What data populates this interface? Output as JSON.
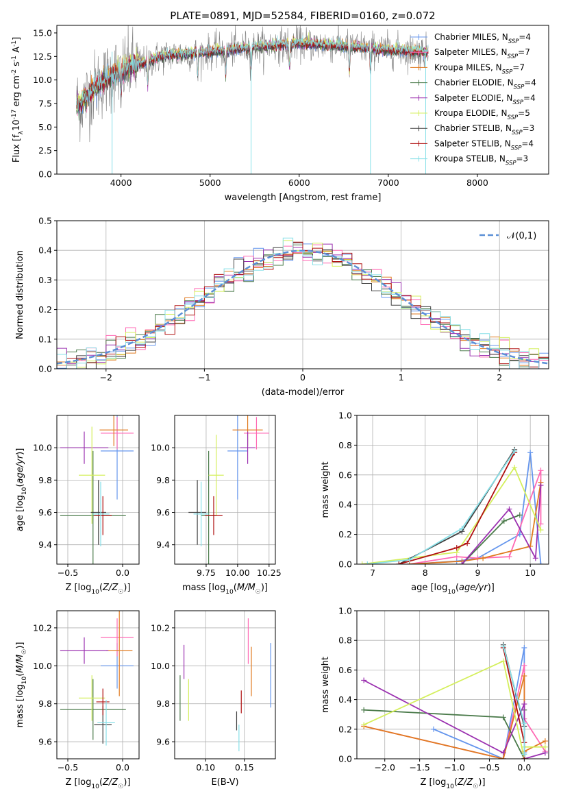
{
  "chart_data": [
    {
      "id": "spectrum",
      "type": "line",
      "title": "PLATE=0891, MJD=52584, FIBERID=0160, z=0.072",
      "xlabel": "wavelength [Angstrom, rest frame]",
      "ylabel": "Flux [f$_\\lambda$10$^{-17}$ erg cm$^{-2}$ s$^{-1}$ A$^{-1}$]",
      "xlim": [
        3280,
        8800
      ],
      "ylim": [
        0,
        15.8
      ],
      "xticks": [
        4000,
        5000,
        6000,
        7000,
        8000
      ],
      "yticks": [
        0.0,
        2.5,
        5.0,
        7.5,
        10.0,
        12.5,
        15.0
      ],
      "grid": false,
      "legend_position": "top-right",
      "data_trace": {
        "color": "#808080",
        "x_range": [
          3500,
          7450
        ]
      },
      "series": [
        {
          "name": "Chabrier MILES",
          "nssp": "4",
          "color": "#6495ed"
        },
        {
          "name": "Salpeter MILES",
          "nssp": "7",
          "color": "#ff69b4"
        },
        {
          "name": "Kroupa MILES",
          "nssp": "7",
          "color": "#e07a1f"
        },
        {
          "name": "Chabrier ELODIE",
          "nssp": "4",
          "color": "#4a7a4a"
        },
        {
          "name": "Salpeter ELODIE",
          "nssp": "4",
          "color": "#9b30b0"
        },
        {
          "name": "Kroupa ELODIE",
          "nssp": "5",
          "color": "#d4ef5c"
        },
        {
          "name": "Chabrier STELIB",
          "nssp": "3",
          "color": "#404040"
        },
        {
          "name": "Salpeter STELIB",
          "nssp": "4",
          "color": "#b01010"
        },
        {
          "name": "Kroupa STELIB",
          "nssp": "3",
          "color": "#87e0e8"
        }
      ],
      "flux_envelope": {
        "x": [
          3550,
          3700,
          3900,
          4000,
          4200,
          4500,
          5000,
          5500,
          6000,
          6500,
          7000,
          7400
        ],
        "y": [
          7.5,
          9.2,
          10.5,
          11.0,
          11.7,
          12.6,
          13.0,
          13.5,
          13.9,
          13.6,
          13.2,
          13.0
        ]
      }
    },
    {
      "id": "residuals",
      "type": "histogram",
      "xlabel": "(data-model)/error",
      "ylabel": "Normed distribution",
      "xlim": [
        -2.5,
        2.5
      ],
      "ylim": [
        0,
        0.5
      ],
      "xticks": [
        -2,
        -1,
        0,
        1,
        2
      ],
      "yticks": [
        0.0,
        0.1,
        0.2,
        0.3,
        0.4,
        0.5
      ],
      "grid": true,
      "legend": "$\\mathcal{N}(0,1)$",
      "legend_position": "top-right",
      "bin_width": 0.1,
      "reference_curve": {
        "name": "N(0,1)",
        "color": "#5b8fd6",
        "style": "dashed"
      }
    },
    {
      "id": "age-vs-Z",
      "type": "errorbar",
      "xlabel": "Z [log$_{10}$($Z/Z_\\odot$)]",
      "ylabel": "age  [log$_{10}$($age/yr$)]",
      "xlim": [
        -0.6,
        0.15
      ],
      "ylim": [
        9.28,
        10.2
      ],
      "xticks": [
        -0.5,
        0.0
      ],
      "yticks": [
        9.4,
        9.6,
        9.8,
        10.0
      ],
      "grid": true,
      "points": [
        {
          "model": "Chabrier MILES",
          "x": -0.05,
          "y": 9.98,
          "xerr": 0.15,
          "yerr": 0.3
        },
        {
          "model": "Salpeter MILES",
          "x": -0.05,
          "y": 10.09,
          "xerr": 0.15,
          "yerr": 0.1
        },
        {
          "model": "Kroupa MILES",
          "x": -0.08,
          "y": 10.11,
          "xerr": 0.13,
          "yerr": 0.1
        },
        {
          "model": "Chabrier ELODIE",
          "x": -0.27,
          "y": 9.58,
          "xerr": 0.3,
          "yerr": 0.4
        },
        {
          "model": "Salpeter ELODIE",
          "x": -0.35,
          "y": 10.0,
          "xerr": 0.22,
          "yerr": 0.1
        },
        {
          "model": "Kroupa ELODIE",
          "x": -0.28,
          "y": 9.83,
          "xerr": 0.12,
          "yerr": 0.3
        },
        {
          "model": "Chabrier STELIB",
          "x": -0.22,
          "y": 9.6,
          "xerr": 0.07,
          "yerr": 0.2
        },
        {
          "model": "Salpeter STELIB",
          "x": -0.18,
          "y": 9.58,
          "xerr": 0.08,
          "yerr": 0.12
        },
        {
          "model": "Kroupa STELIB",
          "x": -0.2,
          "y": 9.59,
          "xerr": 0.08,
          "yerr": 0.2
        }
      ]
    },
    {
      "id": "age-vs-mass",
      "type": "errorbar",
      "xlabel": "mass [log$_{10}$($M/M_\\odot$)]",
      "ylabel": "",
      "xlim": [
        9.5,
        10.3
      ],
      "ylim": [
        9.28,
        10.2
      ],
      "xticks": [
        9.75,
        10.0,
        10.25
      ],
      "yticks": [
        9.4,
        9.6,
        9.8,
        10.0
      ],
      "grid": true,
      "points": [
        {
          "model": "Chabrier MILES",
          "x": 10.0,
          "y": 9.98,
          "xerr": 0.08,
          "yerr": 0.3
        },
        {
          "model": "Salpeter MILES",
          "x": 10.15,
          "y": 10.09,
          "xerr": 0.1,
          "yerr": 0.1
        },
        {
          "model": "Kroupa MILES",
          "x": 10.08,
          "y": 10.11,
          "xerr": 0.12,
          "yerr": 0.1
        },
        {
          "model": "Chabrier ELODIE",
          "x": 9.77,
          "y": 9.58,
          "xerr": 0.06,
          "yerr": 0.4
        },
        {
          "model": "Salpeter ELODIE",
          "x": 10.08,
          "y": 10.0,
          "xerr": 0.06,
          "yerr": 0.1
        },
        {
          "model": "Kroupa ELODIE",
          "x": 9.83,
          "y": 9.83,
          "xerr": 0.06,
          "yerr": 0.25
        },
        {
          "model": "Chabrier STELIB",
          "x": 9.68,
          "y": 9.6,
          "xerr": 0.07,
          "yerr": 0.2
        },
        {
          "model": "Salpeter STELIB",
          "x": 9.81,
          "y": 9.58,
          "xerr": 0.07,
          "yerr": 0.12
        },
        {
          "model": "Kroupa STELIB",
          "x": 9.71,
          "y": 9.59,
          "xerr": 0.06,
          "yerr": 0.2
        }
      ]
    },
    {
      "id": "weight-vs-age",
      "type": "line",
      "xlabel": "age  [log$_{10}$($age/yr$)]",
      "ylabel": "mass weight",
      "xlim": [
        6.7,
        10.35
      ],
      "ylim": [
        0,
        1.0
      ],
      "xticks": [
        7,
        8,
        9,
        10
      ],
      "yticks": [
        0.0,
        0.2,
        0.4,
        0.6,
        0.8,
        1.0
      ],
      "grid": true,
      "lines": [
        {
          "model": "Chabrier MILES",
          "x": [
            7.7,
            8.6,
            9.0,
            9.8,
            10.0,
            10.2
          ],
          "y": [
            0.0,
            0.02,
            0.04,
            0.2,
            0.75,
            0.0
          ]
        },
        {
          "model": "Salpeter MILES",
          "x": [
            7.7,
            8.6,
            9.0,
            9.6,
            10.2,
            10.2
          ],
          "y": [
            0.0,
            0.05,
            0.04,
            0.05,
            0.63,
            0.27
          ]
        },
        {
          "model": "Kroupa MILES",
          "x": [
            7.7,
            8.7,
            9.1,
            10.0,
            10.2
          ],
          "y": [
            0.0,
            0.02,
            0.04,
            0.12,
            0.55
          ]
        },
        {
          "model": "Chabrier ELODIE",
          "x": [
            8.7,
            9.5,
            9.8
          ],
          "y": [
            0.0,
            0.29,
            0.33
          ]
        },
        {
          "model": "Salpeter ELODIE",
          "x": [
            8.7,
            9.6,
            10.1,
            10.2
          ],
          "y": [
            0.0,
            0.37,
            0.04,
            0.53
          ]
        },
        {
          "model": "Kroupa ELODIE",
          "x": [
            6.8,
            8.6,
            9.7,
            10.2
          ],
          "y": [
            0.0,
            0.08,
            0.65,
            0.23
          ]
        },
        {
          "model": "Chabrier STELIB",
          "x": [
            7.5,
            8.7,
            9.7
          ],
          "y": [
            0.0,
            0.22,
            0.77
          ]
        },
        {
          "model": "Salpeter STELIB",
          "x": [
            7.5,
            8.6,
            8.8,
            9.7
          ],
          "y": [
            0.0,
            0.11,
            0.14,
            0.75
          ]
        },
        {
          "model": "Kroupa STELIB",
          "x": [
            6.9,
            7.7,
            8.7,
            9.7
          ],
          "y": [
            0.0,
            0.03,
            0.24,
            0.76
          ]
        }
      ]
    },
    {
      "id": "mass-vs-Z",
      "type": "errorbar",
      "xlabel": "Z [log$_{10}$($Z/Z_\\odot$)]",
      "ylabel": "mass [log$_{10}$($M/M_\\odot$)]",
      "xlim": [
        -0.6,
        0.15
      ],
      "ylim": [
        9.51,
        10.29
      ],
      "xticks": [
        -0.5,
        0.0
      ],
      "yticks": [
        9.6,
        9.8,
        10.0,
        10.2
      ],
      "grid": true,
      "points": [
        {
          "model": "Chabrier MILES",
          "x": -0.05,
          "y": 10.0,
          "xerr": 0.15,
          "yerr": 0.12
        },
        {
          "model": "Salpeter MILES",
          "x": -0.05,
          "y": 10.15,
          "xerr": 0.15,
          "yerr": 0.1
        },
        {
          "model": "Kroupa MILES",
          "x": -0.03,
          "y": 10.08,
          "xerr": 0.12,
          "yerr": 0.24
        },
        {
          "model": "Chabrier ELODIE",
          "x": -0.27,
          "y": 9.77,
          "xerr": 0.3,
          "yerr": 0.16
        },
        {
          "model": "Salpeter ELODIE",
          "x": -0.35,
          "y": 10.08,
          "xerr": 0.22,
          "yerr": 0.07
        },
        {
          "model": "Kroupa ELODIE",
          "x": -0.28,
          "y": 9.83,
          "xerr": 0.12,
          "yerr": 0.12
        },
        {
          "model": "Chabrier STELIB",
          "x": -0.18,
          "y": 9.69,
          "xerr": 0.08,
          "yerr": 0.1
        },
        {
          "model": "Salpeter STELIB",
          "x": -0.18,
          "y": 9.81,
          "xerr": 0.06,
          "yerr": 0.07
        },
        {
          "model": "Kroupa STELIB",
          "x": -0.15,
          "y": 9.7,
          "xerr": 0.08,
          "yerr": 0.12
        }
      ]
    },
    {
      "id": "mass-vs-ebv",
      "type": "errorbar",
      "xlabel": "E(B-V)",
      "ylabel": "",
      "xlim": [
        0.06,
        0.19
      ],
      "ylim": [
        9.51,
        10.29
      ],
      "xticks": [
        0.1,
        0.15
      ],
      "yticks": [
        9.6,
        9.8,
        10.0,
        10.2
      ],
      "grid": true,
      "points": [
        {
          "model": "Chabrier MILES",
          "x": 0.184,
          "y": 9.95,
          "yerr": 0.17
        },
        {
          "model": "Salpeter MILES",
          "x": 0.155,
          "y": 10.13,
          "yerr": 0.12
        },
        {
          "model": "Kroupa MILES",
          "x": 0.159,
          "y": 9.97,
          "yerr": 0.13
        },
        {
          "model": "Chabrier ELODIE",
          "x": 0.067,
          "y": 9.83,
          "yerr": 0.12
        },
        {
          "model": "Salpeter ELODIE",
          "x": 0.072,
          "y": 10.02,
          "yerr": 0.09
        },
        {
          "model": "Kroupa ELODIE",
          "x": 0.078,
          "y": 9.82,
          "yerr": 0.11
        },
        {
          "model": "Chabrier STELIB",
          "x": 0.14,
          "y": 9.71,
          "yerr": 0.05
        },
        {
          "model": "Salpeter STELIB",
          "x": 0.146,
          "y": 9.81,
          "yerr": 0.06
        },
        {
          "model": "Kroupa STELIB",
          "x": 0.143,
          "y": 9.62,
          "yerr": 0.07
        }
      ]
    },
    {
      "id": "weight-vs-Z",
      "type": "line",
      "xlabel": "Z [log$_{10}$($Z/Z_\\odot$)]",
      "ylabel": "mass weight",
      "xlim": [
        -2.4,
        0.35
      ],
      "ylim": [
        0,
        1.0
      ],
      "xticks": [
        -2.0,
        -1.5,
        -1.0,
        -0.5,
        0.0
      ],
      "yticks": [
        0.0,
        0.2,
        0.4,
        0.6,
        0.8,
        1.0
      ],
      "grid": true,
      "lines": [
        {
          "model": "Chabrier MILES",
          "x": [
            -1.3,
            -0.3,
            0.0,
            0.0,
            0.0
          ],
          "y": [
            0.2,
            0.0,
            0.75,
            0.04,
            0.0
          ]
        },
        {
          "model": "Salpeter MILES",
          "x": [
            -2.3,
            -0.3,
            0.0,
            0.0,
            0.3
          ],
          "y": [
            0.22,
            0.0,
            0.63,
            0.27,
            0.05
          ]
        },
        {
          "model": "Kroupa MILES",
          "x": [
            -2.3,
            -0.3,
            0.0,
            0.0,
            0.3
          ],
          "y": [
            0.22,
            0.0,
            0.56,
            0.05,
            0.12
          ]
        },
        {
          "model": "Chabrier ELODIE",
          "x": [
            -2.3,
            -0.3,
            0.0,
            0.0
          ],
          "y": [
            0.33,
            0.28,
            0.0,
            0.33
          ]
        },
        {
          "model": "Salpeter ELODIE",
          "x": [
            -2.3,
            -0.3,
            0.0,
            0.0,
            0.3
          ],
          "y": [
            0.53,
            0.04,
            0.37,
            0.0,
            0.04
          ]
        },
        {
          "model": "Kroupa ELODIE",
          "x": [
            -2.3,
            -0.3,
            0.0,
            0.0,
            0.3
          ],
          "y": [
            0.23,
            0.66,
            0.0,
            0.08,
            0.08
          ]
        },
        {
          "model": "Chabrier STELIB",
          "x": [
            -0.3,
            0.0,
            0.0
          ],
          "y": [
            0.77,
            0.22,
            0.0
          ]
        },
        {
          "model": "Salpeter STELIB",
          "x": [
            -0.3,
            0.0,
            0.0
          ],
          "y": [
            0.75,
            0.11,
            0.0
          ]
        },
        {
          "model": "Kroupa STELIB",
          "x": [
            -0.3,
            0.0,
            0.0
          ],
          "y": [
            0.76,
            0.24,
            0.03
          ]
        }
      ]
    }
  ]
}
